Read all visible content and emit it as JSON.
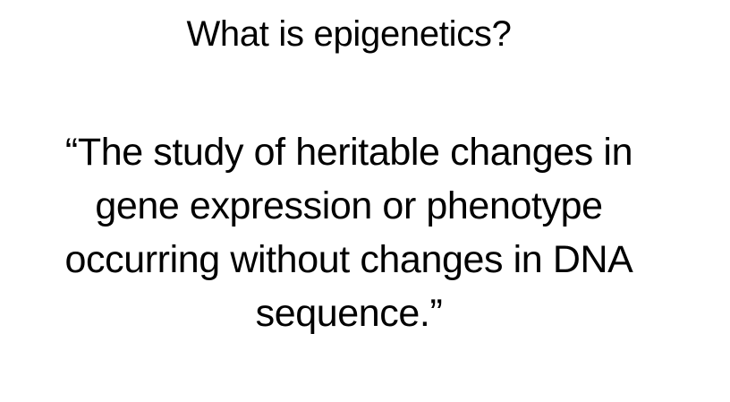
{
  "slide": {
    "title": "What is epigenetics?",
    "quote_lines": [
      "“The study of heritable changes in",
      "gene expression or phenotype",
      "occurring without changes in DNA",
      "sequence.”"
    ]
  }
}
